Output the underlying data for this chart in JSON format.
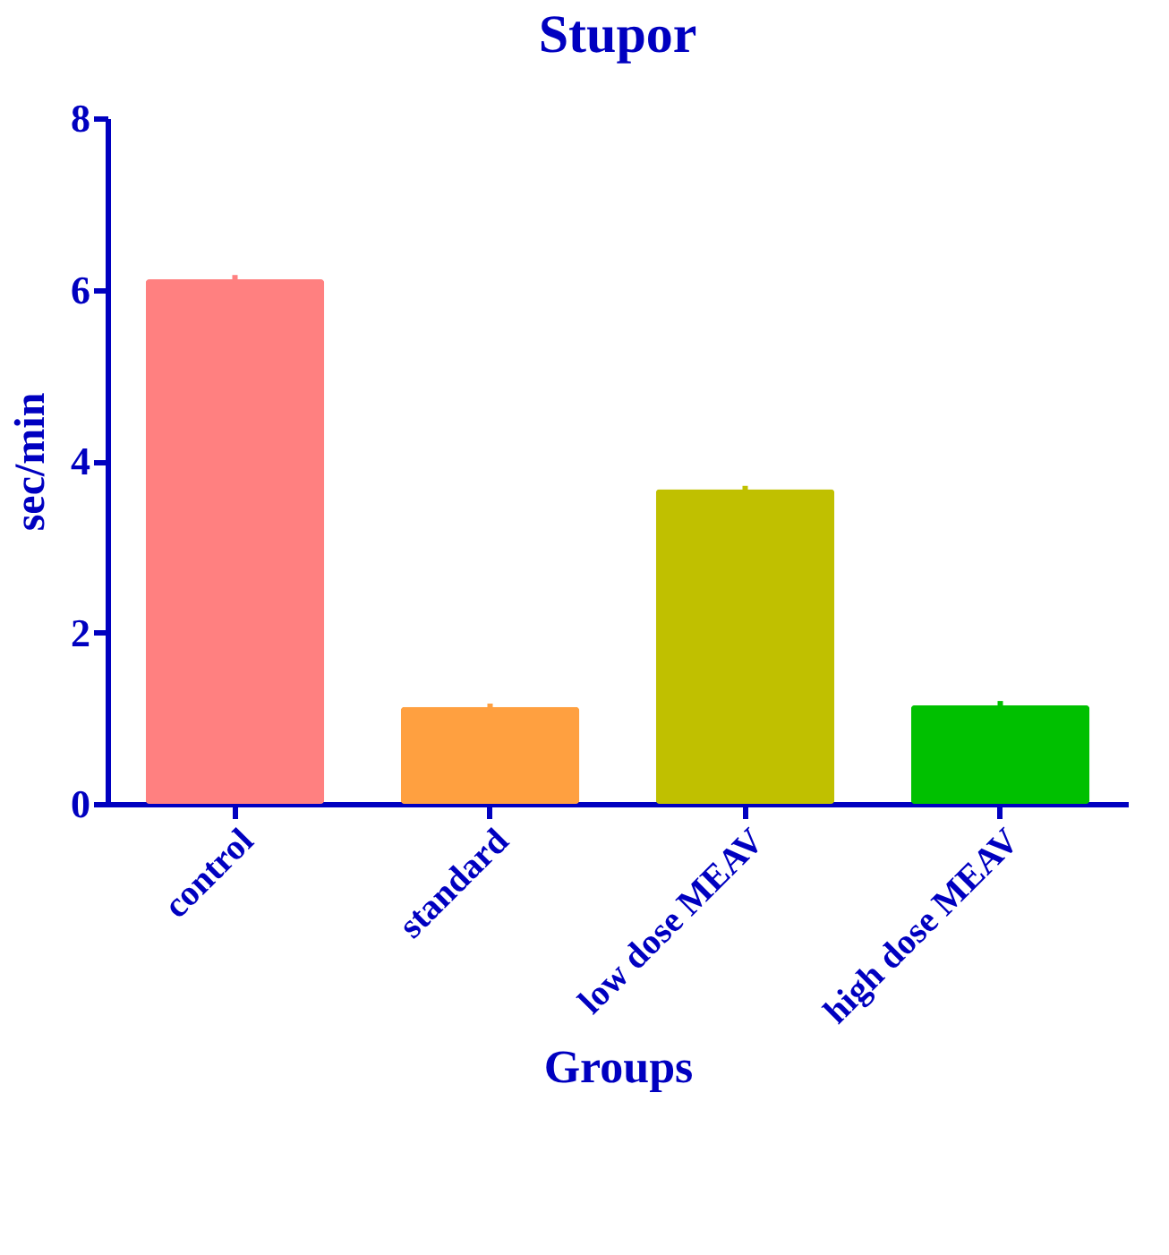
{
  "chart_data": {
    "type": "bar",
    "title": "Stupor",
    "xlabel": "Groups",
    "ylabel": "sec/min",
    "categories": [
      "control",
      "standard",
      "low dose MEAV",
      "high dose MEAV"
    ],
    "values": [
      6.12,
      1.13,
      3.67,
      1.15
    ],
    "errors": [
      0.05,
      0.04,
      0.04,
      0.05
    ],
    "colors": [
      "#ff8080",
      "#ffa040",
      "#c0c000",
      "#00c000"
    ],
    "ylim": [
      0,
      8
    ],
    "yticks": [
      0,
      2,
      4,
      6,
      8
    ],
    "grid": false
  }
}
